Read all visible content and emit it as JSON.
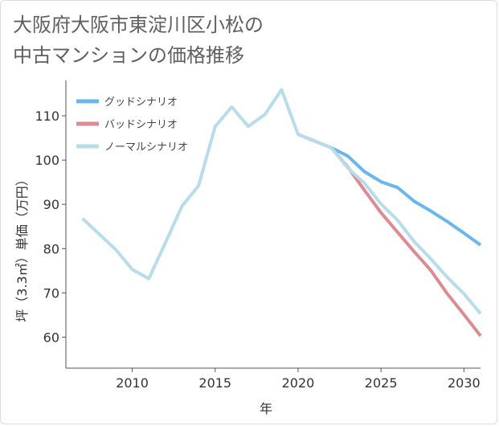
{
  "title_line1": "大阪府大阪市東淀川区小松の",
  "title_line2": "中古マンションの価格推移",
  "chart_data": {
    "type": "line",
    "xlabel": "年",
    "ylabel": "坪（3.3㎡）単価（万円）",
    "xlim": [
      2006,
      2031
    ],
    "ylim": [
      53,
      118
    ],
    "xticks": [
      2010,
      2015,
      2020,
      2025,
      2030
    ],
    "yticks": [
      60,
      70,
      80,
      90,
      100,
      110
    ],
    "grid": false,
    "legend_position": "top-left",
    "series": [
      {
        "name": "グッドシナリオ",
        "color": "#6ab7ef",
        "x": [
          2020,
          2021,
          2022,
          2023,
          2024,
          2025,
          2026,
          2027,
          2028,
          2029,
          2030,
          2031
        ],
        "y": [
          105.8,
          104.3,
          102.8,
          100.9,
          97.4,
          95.1,
          93.8,
          90.7,
          88.5,
          86.1,
          83.5,
          80.8
        ]
      },
      {
        "name": "バッドシナリオ",
        "color": "#de8a92",
        "x": [
          2020,
          2021,
          2022,
          2023,
          2024,
          2025,
          2026,
          2027,
          2028,
          2029,
          2030,
          2031
        ],
        "y": [
          105.8,
          104.3,
          102.8,
          98.4,
          93.2,
          88.1,
          83.7,
          79.3,
          75.1,
          69.8,
          65.1,
          60.3
        ]
      },
      {
        "name": "ノーマルシナリオ",
        "color": "#b7dcea",
        "x": [
          2007,
          2008,
          2009,
          2010,
          2011,
          2012,
          2013,
          2014,
          2015,
          2016,
          2017,
          2018,
          2019,
          2020,
          2021,
          2022,
          2023,
          2024,
          2025,
          2026,
          2027,
          2028,
          2029,
          2030,
          2031
        ],
        "y": [
          86.8,
          83.3,
          79.8,
          75.3,
          73.2,
          81.3,
          89.6,
          94.2,
          107.6,
          112.0,
          107.6,
          110.3,
          115.9,
          105.8,
          104.3,
          102.8,
          98.2,
          94.8,
          90.1,
          86.4,
          81.6,
          77.7,
          73.5,
          69.8,
          65.3
        ]
      }
    ]
  }
}
